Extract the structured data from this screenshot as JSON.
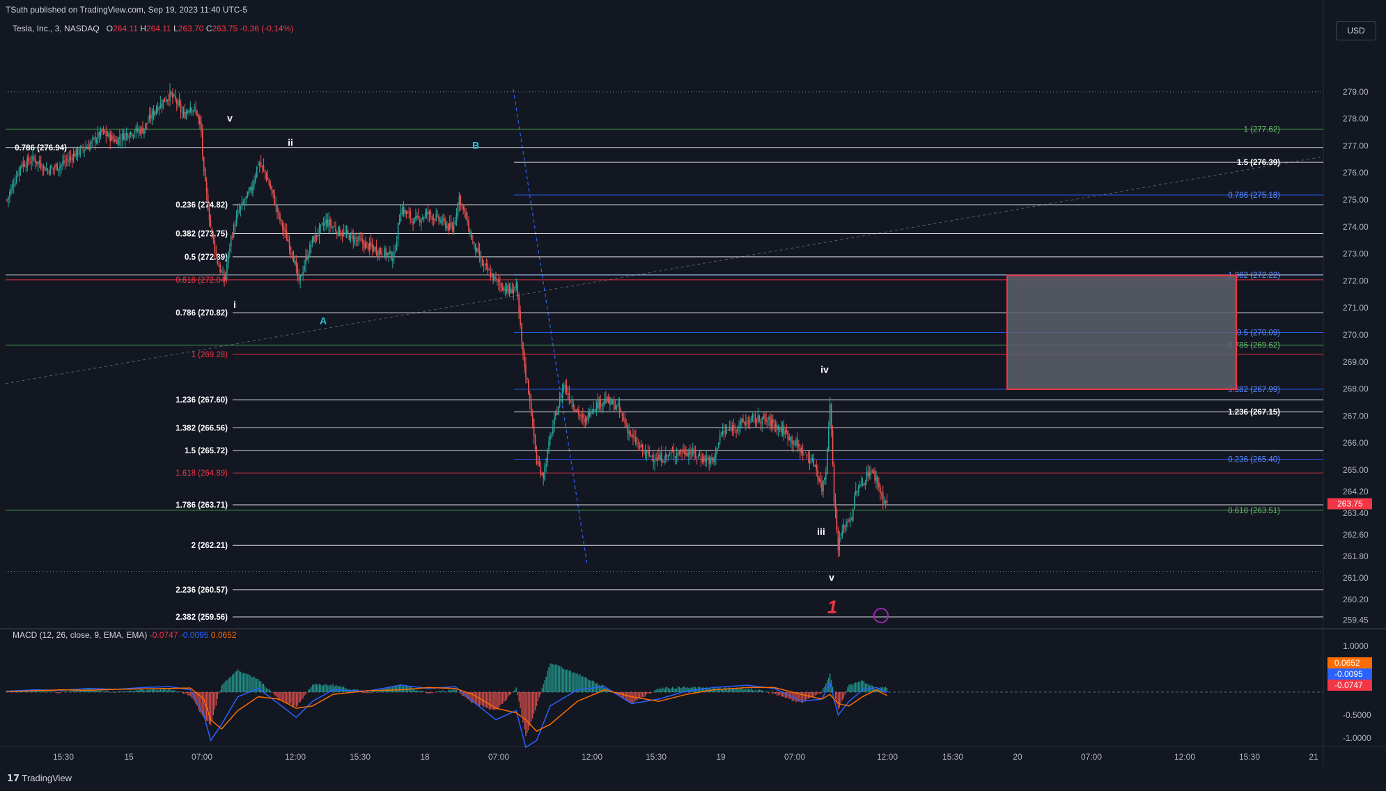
{
  "header": {
    "published": "TSuth published on TradingView.com, Sep 19, 2023 11:40 UTC-5",
    "symbol": "Tesla, Inc., 3, NASDAQ",
    "open_label": "O",
    "open": "264.11",
    "high_label": "H",
    "high": "264.11",
    "low_label": "L",
    "low": "263.70",
    "close_label": "C",
    "close": "263.75",
    "change": "-0.36 (-0.14%)"
  },
  "currency": "USD",
  "brand": "TradingView",
  "colors": {
    "background": "#131722",
    "up": "#26a69a",
    "down": "#ef5350",
    "fib_white": "#ffffff",
    "fib_red": "#f23645",
    "fib_blue": "#2962ff",
    "fib_green": "#4caf50",
    "wave_label_cyan": "#26c6da",
    "price_badge": "#f23645",
    "macd_line": "#2962ff",
    "signal_line": "#ff6d00"
  },
  "chart_data": [
    {
      "type": "candlestick",
      "title": "Tesla, Inc., 3, NASDAQ",
      "x_tick_labels": [
        "15:30",
        "15",
        "07:00",
        "12:00",
        "15:30",
        "18",
        "07:00",
        "12:00",
        "15:30",
        "19",
        "07:00",
        "12:00",
        "15:30",
        "20",
        "07:00",
        "12:00",
        "15:30",
        "21"
      ],
      "y_tick_labels": [
        "279.00",
        "278.00",
        "277.00",
        "276.00",
        "275.00",
        "274.00",
        "273.00",
        "272.00",
        "271.00",
        "270.00",
        "269.00",
        "268.00",
        "267.00",
        "266.00",
        "265.00",
        "264.20",
        "263.40",
        "262.60",
        "261.80",
        "261.00",
        "260.20",
        "259.45"
      ],
      "ylim": [
        259.2,
        280.8
      ],
      "last_price": "263.75",
      "path_close": [
        [
          0,
          275.0
        ],
        [
          10,
          276.3
        ],
        [
          20,
          276.5
        ],
        [
          30,
          276.1
        ],
        [
          40,
          276.3
        ],
        [
          50,
          276.7
        ],
        [
          60,
          277.0
        ],
        [
          70,
          277.5
        ],
        [
          80,
          277.2
        ],
        [
          90,
          277.5
        ],
        [
          100,
          277.6
        ],
        [
          110,
          278.4
        ],
        [
          120,
          278.9
        ],
        [
          125,
          278.6
        ],
        [
          130,
          278.1
        ],
        [
          135,
          278.5
        ],
        [
          140,
          278.2
        ],
        [
          143,
          277.5
        ],
        [
          145,
          275.9
        ],
        [
          150,
          274.0
        ],
        [
          155,
          272.7
        ],
        [
          160,
          272.0
        ],
        [
          165,
          273.6
        ],
        [
          170,
          274.5
        ],
        [
          180,
          275.4
        ],
        [
          185,
          276.4
        ],
        [
          190,
          276.0
        ],
        [
          195,
          275.3
        ],
        [
          200,
          274.4
        ],
        [
          205,
          273.7
        ],
        [
          210,
          273.1
        ],
        [
          215,
          271.9
        ],
        [
          220,
          272.8
        ],
        [
          225,
          273.5
        ],
        [
          235,
          274.2
        ],
        [
          245,
          273.8
        ],
        [
          255,
          273.6
        ],
        [
          265,
          273.3
        ],
        [
          275,
          273.1
        ],
        [
          285,
          272.9
        ],
        [
          290,
          274.7
        ],
        [
          300,
          274.2
        ],
        [
          310,
          274.5
        ],
        [
          320,
          274.2
        ],
        [
          328,
          273.9
        ],
        [
          333,
          275.1
        ],
        [
          338,
          274.3
        ],
        [
          343,
          273.4
        ],
        [
          350,
          272.6
        ],
        [
          360,
          272.0
        ],
        [
          370,
          271.6
        ],
        [
          375,
          271.8
        ],
        [
          380,
          269.2
        ],
        [
          385,
          267.6
        ],
        [
          390,
          265.3
        ],
        [
          395,
          264.8
        ],
        [
          400,
          266.2
        ],
        [
          405,
          267.2
        ],
        [
          410,
          268.2
        ],
        [
          415,
          267.6
        ],
        [
          420,
          267.2
        ],
        [
          425,
          266.7
        ],
        [
          430,
          267.3
        ],
        [
          440,
          267.6
        ],
        [
          450,
          267.3
        ],
        [
          460,
          266.2
        ],
        [
          470,
          265.6
        ],
        [
          480,
          265.4
        ],
        [
          490,
          265.6
        ],
        [
          500,
          265.7
        ],
        [
          510,
          265.5
        ],
        [
          520,
          265.3
        ],
        [
          525,
          266.3
        ],
        [
          535,
          266.6
        ],
        [
          545,
          266.8
        ],
        [
          555,
          266.9
        ],
        [
          565,
          266.7
        ],
        [
          575,
          266.3
        ],
        [
          585,
          265.7
        ],
        [
          595,
          265.2
        ],
        [
          600,
          264.3
        ],
        [
          603,
          265.0
        ],
        [
          606,
          267.6
        ],
        [
          609,
          264.0
        ],
        [
          612,
          262.2
        ],
        [
          617,
          263.0
        ],
        [
          622,
          263.3
        ],
        [
          625,
          264.2
        ],
        [
          630,
          264.5
        ],
        [
          635,
          265.0
        ],
        [
          640,
          264.7
        ],
        [
          645,
          263.9
        ],
        [
          648,
          263.75
        ]
      ]
    },
    {
      "type": "line",
      "title": "MACD (12, 26, close, 9, EMA, EMA)",
      "series": [
        {
          "name": "MACD",
          "last": -0.0095
        },
        {
          "name": "Signal",
          "last": -0.0747
        },
        {
          "name": "Histogram",
          "last": 0.0652
        }
      ],
      "y_tick_labels": [
        "1.0000",
        "0.5000",
        "-0.5000",
        "-1.0000"
      ],
      "ylim": [
        -1.15,
        1.15
      ],
      "values_path": [
        [
          0,
          0.02,
          0.01
        ],
        [
          20,
          0.05,
          0.03
        ],
        [
          40,
          0.04,
          0.05
        ],
        [
          60,
          0.08,
          0.04
        ],
        [
          80,
          0.06,
          0.06
        ],
        [
          100,
          0.1,
          0.07
        ],
        [
          120,
          0.12,
          0.08
        ],
        [
          135,
          0.05,
          0.09
        ],
        [
          145,
          -0.5,
          -0.15
        ],
        [
          150,
          -1.05,
          -0.6
        ],
        [
          158,
          -0.7,
          -0.8
        ],
        [
          170,
          -0.1,
          -0.4
        ],
        [
          185,
          0.08,
          -0.1
        ],
        [
          200,
          -0.25,
          -0.15
        ],
        [
          213,
          -0.55,
          -0.35
        ],
        [
          225,
          -0.2,
          -0.3
        ],
        [
          240,
          0.05,
          -0.05
        ],
        [
          265,
          0.02,
          0.03
        ],
        [
          290,
          0.15,
          0.05
        ],
        [
          310,
          0.08,
          0.1
        ],
        [
          330,
          0.12,
          0.08
        ],
        [
          343,
          -0.2,
          -0.05
        ],
        [
          360,
          -0.6,
          -0.35
        ],
        [
          375,
          -0.4,
          -0.45
        ],
        [
          382,
          -1.2,
          -0.6
        ],
        [
          390,
          -1.05,
          -0.85
        ],
        [
          400,
          -0.3,
          -0.7
        ],
        [
          420,
          0.05,
          -0.2
        ],
        [
          440,
          0.12,
          0.05
        ],
        [
          460,
          -0.25,
          -0.1
        ],
        [
          480,
          -0.15,
          -0.2
        ],
        [
          500,
          0.02,
          -0.05
        ],
        [
          520,
          0.1,
          0.05
        ],
        [
          545,
          0.15,
          0.1
        ],
        [
          565,
          0.08,
          0.1
        ],
        [
          585,
          -0.2,
          -0.05
        ],
        [
          600,
          -0.15,
          -0.15
        ],
        [
          606,
          0.2,
          -0.05
        ],
        [
          612,
          -0.5,
          -0.25
        ],
        [
          620,
          -0.2,
          -0.3
        ],
        [
          630,
          0.05,
          -0.1
        ],
        [
          640,
          0.1,
          0.05
        ],
        [
          648,
          -0.0095,
          -0.0747
        ]
      ],
      "labels": [
        "-0.0747",
        "-0.0095",
        "0.0652"
      ]
    }
  ],
  "fib_levels": [
    {
      "text": "0.786 (276.94)",
      "price": 276.94,
      "color": "white",
      "side": "left",
      "bold": true
    },
    {
      "text": "0.236 (274.82)",
      "price": 274.82,
      "color": "white",
      "side": "mid"
    },
    {
      "text": "0.382 (273.75)",
      "price": 273.75,
      "color": "white",
      "side": "mid"
    },
    {
      "text": "0.5 (272.89)",
      "price": 272.89,
      "color": "white",
      "side": "mid"
    },
    {
      "text": "0.618 (272.04)",
      "price": 272.04,
      "color": "red",
      "side": "mid"
    },
    {
      "text": "0.786 (270.82)",
      "price": 270.82,
      "color": "white",
      "side": "mid"
    },
    {
      "text": "1 (269.28)",
      "price": 269.28,
      "color": "red",
      "side": "mid"
    },
    {
      "text": "1.236 (267.60)",
      "price": 267.6,
      "color": "white",
      "side": "mid"
    },
    {
      "text": "1.382 (266.56)",
      "price": 266.56,
      "color": "white",
      "side": "mid"
    },
    {
      "text": "1.5 (265.72)",
      "price": 265.72,
      "color": "white",
      "side": "mid"
    },
    {
      "text": "1.618 (264.89)",
      "price": 264.89,
      "color": "red",
      "side": "mid"
    },
    {
      "text": "1.786 (263.71)",
      "price": 263.71,
      "color": "white",
      "side": "mid"
    },
    {
      "text": "2 (262.21)",
      "price": 262.21,
      "color": "white",
      "side": "mid"
    },
    {
      "text": "2.236 (260.57)",
      "price": 260.57,
      "color": "white",
      "side": "mid"
    },
    {
      "text": "2.382 (259.56)",
      "price": 259.56,
      "color": "white",
      "side": "mid"
    },
    {
      "text": "1 (277.62)",
      "price": 277.62,
      "color": "green",
      "side": "right"
    },
    {
      "text": "1.5 (276.39)",
      "price": 276.39,
      "color": "white",
      "side": "right"
    },
    {
      "text": "0.786 (275.18)",
      "price": 275.18,
      "color": "blue",
      "side": "right"
    },
    {
      "text": "1.382 (272.22)",
      "price": 272.22,
      "color": "blue",
      "side": "right"
    },
    {
      "text": "0.5 (270.09)",
      "price": 270.09,
      "color": "blue",
      "side": "right"
    },
    {
      "text": "0.786 (269.62)",
      "price": 269.62,
      "color": "green",
      "side": "right"
    },
    {
      "text": "0.382 (267.99)",
      "price": 267.99,
      "color": "blue",
      "side": "right"
    },
    {
      "text": "1.236 (267.15)",
      "price": 267.15,
      "color": "white",
      "side": "right"
    },
    {
      "text": "0.236 (265.40)",
      "price": 265.4,
      "color": "blue",
      "side": "right"
    },
    {
      "text": "0.618 (263.51)",
      "price": 263.51,
      "color": "green",
      "side": "right"
    }
  ],
  "wave_labels": [
    {
      "text": "v",
      "color": "white"
    },
    {
      "text": "ii",
      "color": "white"
    },
    {
      "text": "B",
      "color": "cyan"
    },
    {
      "text": "i",
      "color": "white"
    },
    {
      "text": "A",
      "color": "cyan"
    },
    {
      "text": "iv",
      "color": "white"
    },
    {
      "text": "iii",
      "color": "white"
    },
    {
      "text": "v",
      "color": "white"
    },
    {
      "text": "1",
      "color": "red"
    }
  ]
}
